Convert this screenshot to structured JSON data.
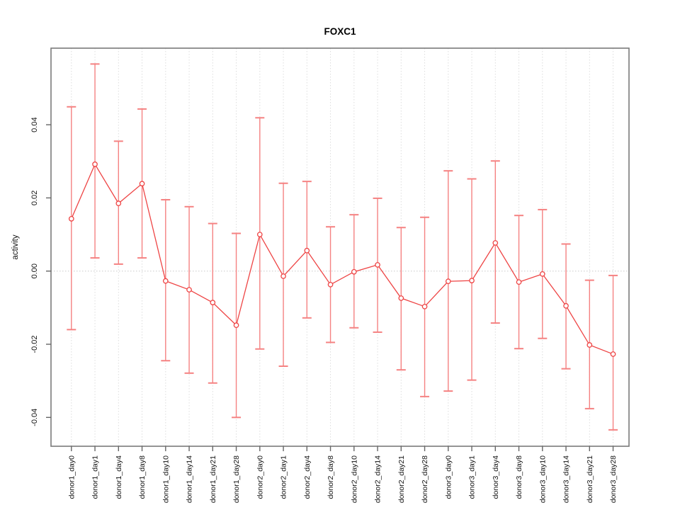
{
  "title": "FOXC1",
  "colors": {
    "point_line": "#ee4444",
    "error_bar": "#f58282",
    "grid": "#dddddd",
    "zero_line": "#c9c9c9",
    "axis_box": "#7a7a7a",
    "tick_mark": "#666666",
    "tick_text": "#111111",
    "title_text": "#000000"
  },
  "chart_data": {
    "type": "scatter",
    "subtype": "points-with-error-bars-and-connecting-line",
    "title": "FOXC1",
    "xlabel": "",
    "ylabel": "activity",
    "ylim": [
      -0.048,
      0.061
    ],
    "grid": "vertical-dotted-per-category",
    "zero_line": true,
    "legend": "none",
    "y_ticks": [
      0.04,
      0.02,
      0.0,
      -0.02,
      -0.04
    ],
    "y_tick_labels": [
      "0.04",
      "0.02",
      "0.00",
      "-0.02",
      "-0.04"
    ],
    "categories": [
      "donor1_day0",
      "donor1_day1",
      "donor1_day4",
      "donor1_day8",
      "donor1_day10",
      "donor1_day14",
      "donor1_day21",
      "donor1_day28",
      "donor2_day0",
      "donor2_day1",
      "donor2_day4",
      "donor2_day8",
      "donor2_day10",
      "donor2_day14",
      "donor2_day21",
      "donor2_day28",
      "donor3_day0",
      "donor3_day1",
      "donor3_day4",
      "donor3_day8",
      "donor3_day10",
      "donor3_day14",
      "donor3_day21",
      "donor3_day28"
    ],
    "series": [
      {
        "name": "activity",
        "values": [
          0.0143,
          0.0292,
          0.0185,
          0.0239,
          -0.0027,
          -0.0051,
          -0.0086,
          -0.0148,
          0.01,
          -0.0014,
          0.0056,
          -0.0037,
          -0.0002,
          0.0017,
          -0.0074,
          -0.0097,
          -0.0028,
          -0.0026,
          0.0077,
          -0.003,
          -0.0008,
          -0.0095,
          -0.0202,
          -0.0227
        ],
        "error_high": [
          0.0449,
          0.0566,
          0.0355,
          0.0443,
          0.0195,
          0.0176,
          0.013,
          0.0103,
          0.0419,
          0.024,
          0.0245,
          0.0121,
          0.0154,
          0.0199,
          0.0119,
          0.0147,
          0.0274,
          0.0252,
          0.0301,
          0.0152,
          0.0168,
          0.0074,
          -0.0025,
          -0.0012
        ],
        "error_low": [
          -0.016,
          0.0036,
          0.0019,
          0.0036,
          -0.0245,
          -0.0279,
          -0.0306,
          -0.04,
          -0.0213,
          -0.026,
          -0.0128,
          -0.0195,
          -0.0155,
          -0.0167,
          -0.027,
          -0.0343,
          -0.0328,
          -0.0298,
          -0.0142,
          -0.0212,
          -0.0184,
          -0.0267,
          -0.0376,
          -0.0434
        ]
      }
    ]
  }
}
